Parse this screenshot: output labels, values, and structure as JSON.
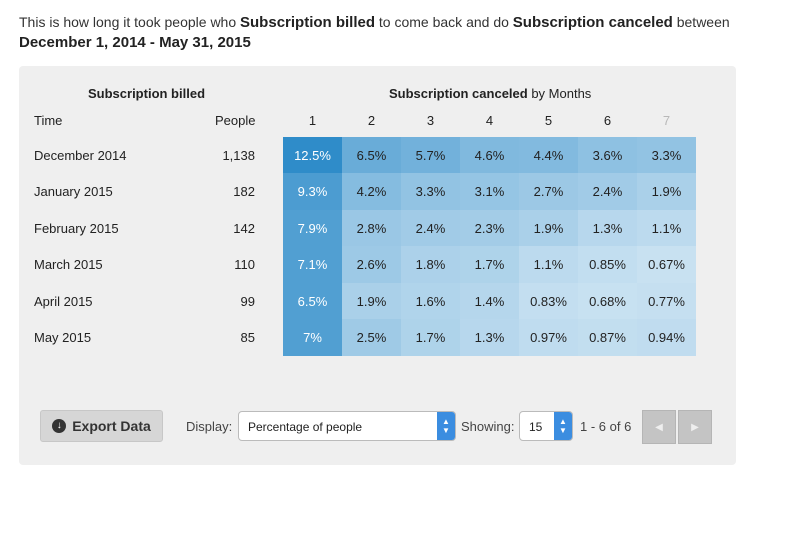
{
  "header": {
    "prefix": "This is how long it took people who",
    "event_a": "Subscription billed",
    "middle": "to come back and do",
    "event_b": "Subscription canceled",
    "suffix": "between",
    "date_range": "December 1, 2014 - May 31, 2015"
  },
  "table": {
    "group_label": "Subscription billed",
    "returning_event": "Subscription canceled",
    "returning_suffix": "by Months",
    "col_time": "Time",
    "col_people": "People",
    "period_headers": [
      "1",
      "2",
      "3",
      "4",
      "5",
      "6",
      "7"
    ],
    "rows": [
      {
        "time": "December 2014",
        "people": "1,138",
        "values": [
          "12.5%",
          "6.5%",
          "5.7%",
          "4.6%",
          "4.4%",
          "3.6%",
          "3.3%"
        ]
      },
      {
        "time": "January 2015",
        "people": "182",
        "values": [
          "9.3%",
          "4.2%",
          "3.3%",
          "3.1%",
          "2.7%",
          "2.4%",
          "1.9%"
        ]
      },
      {
        "time": "February 2015",
        "people": "142",
        "values": [
          "7.9%",
          "2.8%",
          "2.4%",
          "2.3%",
          "1.9%",
          "1.3%",
          "1.1%"
        ]
      },
      {
        "time": "March 2015",
        "people": "110",
        "values": [
          "7.1%",
          "2.6%",
          "1.8%",
          "1.7%",
          "1.1%",
          "0.85%",
          "0.67%"
        ]
      },
      {
        "time": "April 2015",
        "people": "99",
        "values": [
          "6.5%",
          "1.9%",
          "1.6%",
          "1.4%",
          "0.83%",
          "0.68%",
          "0.77%"
        ]
      },
      {
        "time": "May 2015",
        "people": "85",
        "values": [
          "7%",
          "2.5%",
          "1.7%",
          "1.3%",
          "0.97%",
          "0.87%",
          "0.94%"
        ]
      }
    ],
    "colors": {
      "heat_low": "#eef6fb",
      "heat_high": "#2f8cc9"
    }
  },
  "toolbar": {
    "export_label": "Export Data",
    "export_icon": "download-circle-icon",
    "display_label": "Display:",
    "display_value": "Percentage of people",
    "showing_label": "Showing:",
    "showing_value": "15",
    "range_text": "1 - 6 of 6",
    "prev_icon": "chevron-left-icon",
    "next_icon": "chevron-right-icon"
  }
}
